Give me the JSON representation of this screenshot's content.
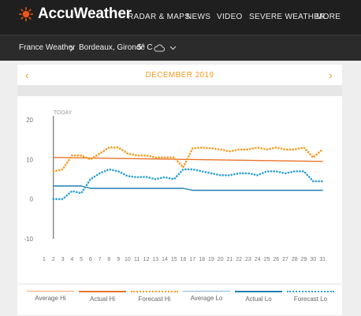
{
  "header": {
    "brand": "AccuWeather",
    "nav": [
      "RADAR & MAPS",
      "NEWS",
      "VIDEO",
      "SEVERE WEATHER",
      "MORE"
    ]
  },
  "location_bar": {
    "country": "France Weather",
    "city": "Bordeaux, Gironde",
    "temp": "5° C"
  },
  "calendar": {
    "month_label": "DECEMBER 2019",
    "prev_icon": "chevron-left-icon",
    "next_icon": "chevron-right-icon"
  },
  "colors": {
    "orange": "#f39c22",
    "orange_dark": "#e8742c",
    "blue": "#1e7fb8",
    "blue_light": "#2a9fd6"
  },
  "chart_data": {
    "type": "line",
    "today_label": "TODAY",
    "today_day": 2,
    "x": [
      1,
      2,
      3,
      4,
      5,
      6,
      7,
      8,
      9,
      10,
      11,
      12,
      13,
      14,
      15,
      16,
      17,
      18,
      19,
      20,
      21,
      22,
      23,
      24,
      25,
      26,
      27,
      28,
      29,
      30,
      31
    ],
    "yticks": [
      20,
      10,
      0,
      -10
    ],
    "ylim": [
      -10,
      20
    ],
    "series": [
      {
        "name": "Average Hi",
        "style": "solid",
        "color": "#f2a772",
        "x": [],
        "values": []
      },
      {
        "name": "Actual Hi",
        "style": "solid",
        "color": "#e8742c",
        "x": [
          2,
          31
        ],
        "values": [
          10.5,
          9.5
        ]
      },
      {
        "name": "Forecast Hi",
        "style": "dotted",
        "color": "#f39c22",
        "x": [
          2,
          3,
          4,
          5,
          6,
          7,
          8,
          9,
          10,
          11,
          12,
          13,
          14,
          15,
          16,
          17,
          18,
          19,
          20,
          21,
          22,
          23,
          24,
          25,
          26,
          27,
          28,
          29,
          30,
          31
        ],
        "values": [
          7,
          7.5,
          11,
          11,
          10,
          11.5,
          13,
          13,
          11.5,
          11,
          11,
          10.5,
          10.5,
          10.5,
          8,
          12.8,
          13,
          12.8,
          12.5,
          12,
          12.5,
          12.5,
          13,
          12.5,
          13,
          12.5,
          12.5,
          13,
          10.5,
          12.5
        ]
      },
      {
        "name": "Average Lo",
        "style": "solid",
        "color": "#8ab6d0",
        "x": [],
        "values": []
      },
      {
        "name": "Actual Lo",
        "style": "solid",
        "color": "#1e7fb8",
        "x": [
          2,
          5,
          6,
          16,
          17,
          31
        ],
        "values": [
          3.3,
          3.3,
          2.7,
          2.7,
          2.2,
          2.2
        ]
      },
      {
        "name": "Forecast Lo",
        "style": "dotted",
        "color": "#2a9fd6",
        "x": [
          2,
          3,
          4,
          5,
          6,
          7,
          8,
          9,
          10,
          11,
          12,
          13,
          14,
          15,
          16,
          17,
          18,
          19,
          20,
          21,
          22,
          23,
          24,
          25,
          26,
          27,
          28,
          29,
          30,
          31
        ],
        "values": [
          0,
          0,
          2,
          1.5,
          5,
          6.5,
          7.5,
          7,
          5.8,
          5.5,
          5.6,
          5,
          5.5,
          5,
          7.5,
          7.5,
          7,
          6.5,
          6,
          6,
          6.5,
          6.5,
          6,
          7,
          7,
          6.5,
          7,
          7,
          4.5,
          4.5
        ]
      }
    ]
  }
}
